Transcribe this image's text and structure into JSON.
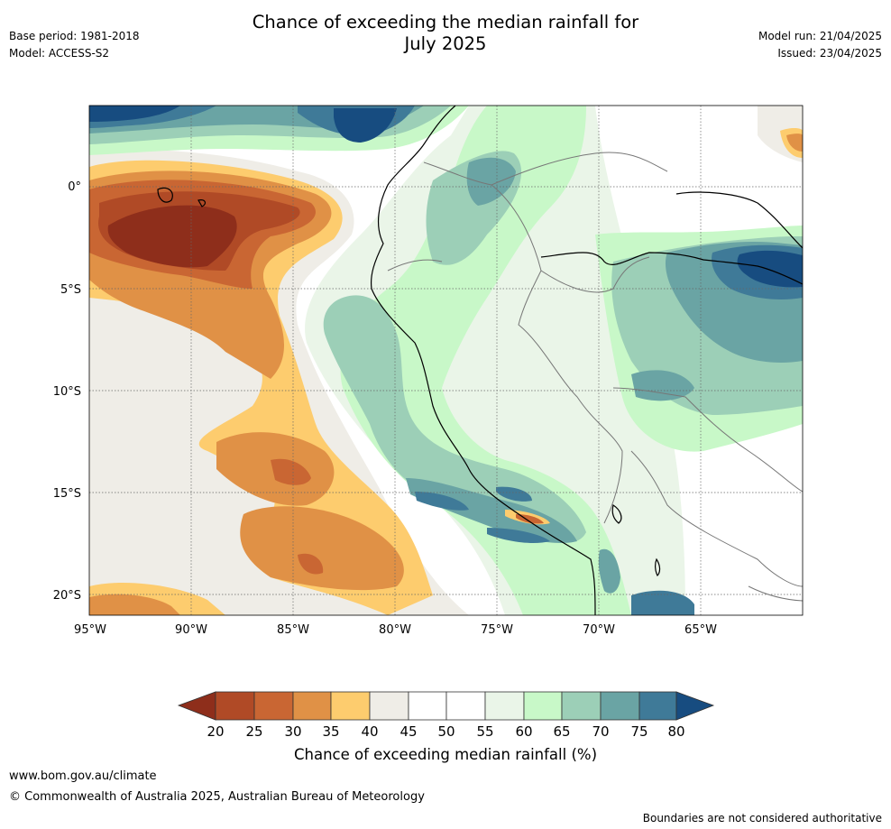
{
  "header": {
    "title_line1": "Chance of exceeding the median rainfall for",
    "title_line2": "July 2025",
    "base_period": "Base period: 1981-2018",
    "model": "Model: ACCESS-S2",
    "model_run": "Model run: 21/04/2025",
    "issued": "Issued: 23/04/2025"
  },
  "map": {
    "lon_ticks": [
      "95°W",
      "90°W",
      "85°W",
      "80°W",
      "75°W",
      "70°W",
      "65°W"
    ],
    "lat_ticks": [
      "0°",
      "5°S",
      "10°S",
      "15°S",
      "20°S"
    ],
    "colors": {
      "c20": "#8e2e1b",
      "c25": "#b04a26",
      "c30": "#c96633",
      "c35": "#e09146",
      "c40": "#fdcc6e",
      "c45": "#efede7",
      "c50": "#ffffff",
      "c55": "#ffffff",
      "c60": "#eaf5e8",
      "c65": "#c8f8c8",
      "c70": "#9ccfb7",
      "c75": "#6aa4a4",
      "c80": "#3f7a98",
      "c85": "#174c80"
    }
  },
  "colorbar": {
    "ticks": [
      "20",
      "25",
      "30",
      "35",
      "40",
      "45",
      "50",
      "55",
      "60",
      "65",
      "70",
      "75",
      "80"
    ],
    "label": "Chance of exceeding median rainfall (%)"
  },
  "footer": {
    "url": "www.bom.gov.au/climate",
    "copyright": "© Commonwealth of Australia 2025, Australian Bureau of Meteorology",
    "note": "Boundaries are not considered authoritative"
  }
}
